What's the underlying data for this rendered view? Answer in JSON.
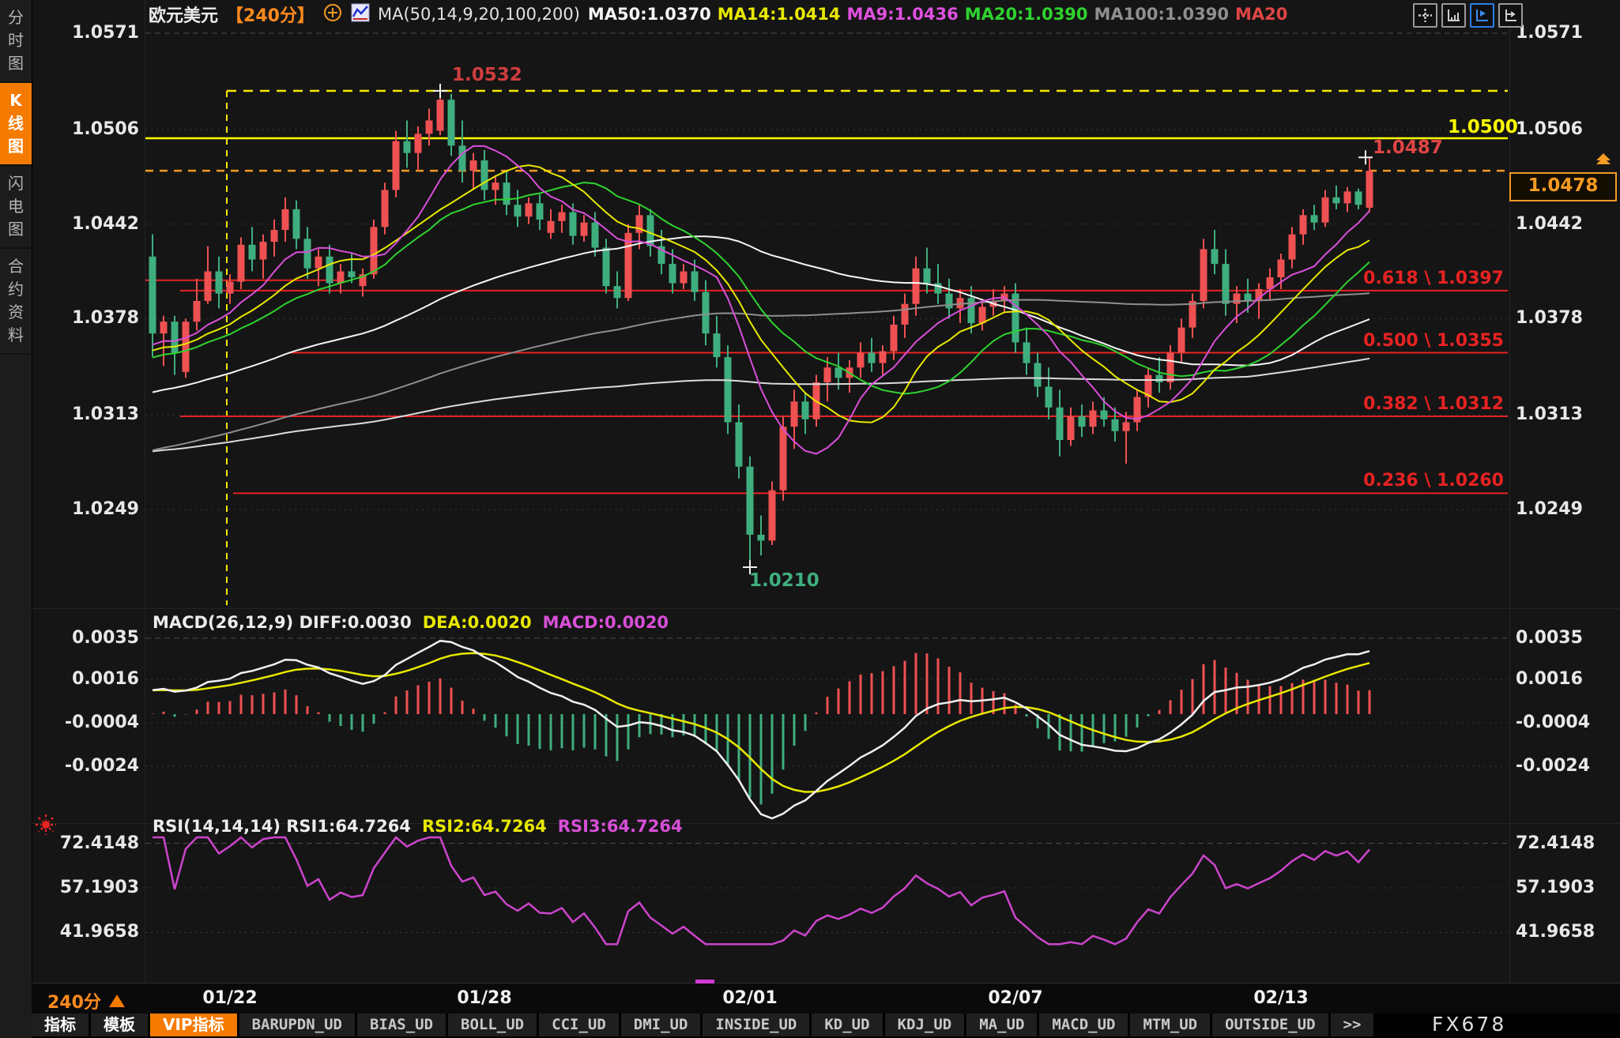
{
  "window": {
    "watermark": "FX678"
  },
  "sidebar": {
    "items": [
      {
        "label": "分时图",
        "active": false
      },
      {
        "label": "K线图",
        "active": true
      },
      {
        "label": "闪电图",
        "active": false
      },
      {
        "label": "合约资料",
        "active": false
      }
    ]
  },
  "header": {
    "symbol": "欧元美元",
    "interval": "【240分】",
    "ma_settings": "MA(50,14,9,20,100,200)",
    "ma_values": [
      {
        "label": "MA50:1.0370",
        "color": "#f5f5f5"
      },
      {
        "label": "MA14:1.0414",
        "color": "#e8e800"
      },
      {
        "label": "MA9:1.0436",
        "color": "#e050e0"
      },
      {
        "label": "MA20:1.0390",
        "color": "#2fd32f"
      },
      {
        "label": "MA100:1.0390",
        "color": "#8f8f8f"
      },
      {
        "label": "MA20",
        "color": "#e04545"
      }
    ],
    "toolbar_icons": [
      "pan-crosshair-icon",
      "axis-scale-icon",
      "axis-scale-active-icon",
      "axis-shift-icon"
    ]
  },
  "price_box": {
    "value": "1.0478"
  },
  "annotations": {
    "peak": "1.0532",
    "recent_high": "1.0487",
    "resistance_label": "1.0500",
    "low": "1.0210",
    "fib_labels": [
      "0.618 \\ 1.0397",
      "0.500 \\ 1.0355",
      "0.382 \\ 1.0312",
      "0.236 \\ 1.0260"
    ]
  },
  "macd_header": {
    "segments": [
      {
        "text": "MACD(26,12,9) DIFF:0.0030",
        "color": "#ececec"
      },
      {
        "text": "DEA:0.0020",
        "color": "#e8e800"
      },
      {
        "text": "MACD:0.0020",
        "color": "#d94fd9"
      }
    ]
  },
  "rsi_header": {
    "segments": [
      {
        "text": "RSI(14,14,14) RSI1:64.7264",
        "color": "#ececec"
      },
      {
        "text": "RSI2:64.7264",
        "color": "#e8e800"
      },
      {
        "text": "RSI3:64.7264",
        "color": "#d94fd9"
      }
    ]
  },
  "footer": {
    "interval_label": "240分",
    "dates": [
      "01/22",
      "01/28",
      "02/01",
      "02/07",
      "02/13"
    ],
    "tabs": [
      {
        "label": "指标",
        "style": "cjk",
        "active": false
      },
      {
        "label": "模板",
        "style": "cjk",
        "active": false
      },
      {
        "label": "VIP指标",
        "style": "cjk",
        "active": true
      },
      {
        "label": "BARUPDN_UD"
      },
      {
        "label": "BIAS_UD"
      },
      {
        "label": "BOLL_UD"
      },
      {
        "label": "CCI_UD"
      },
      {
        "label": "DMI_UD"
      },
      {
        "label": "INSIDE_UD"
      },
      {
        "label": "KD_UD"
      },
      {
        "label": "KDJ_UD"
      },
      {
        "label": "MA_UD"
      },
      {
        "label": "MACD_UD"
      },
      {
        "label": "MTM_UD"
      },
      {
        "label": "OUTSIDE_UD"
      },
      {
        "label": ">>"
      }
    ]
  },
  "chart_data": {
    "type": "candlestick",
    "title": "欧元美元 240分 K线图",
    "symbol": "EURUSD",
    "interval_minutes": 240,
    "price_ticks": [
      1.0571,
      1.0506,
      1.0442,
      1.0378,
      1.0313,
      1.0249
    ],
    "x_labels": [
      "01/22",
      "01/28",
      "02/01",
      "02/07",
      "02/13"
    ],
    "x_label_candle_index": [
      7,
      30,
      54,
      78,
      102
    ],
    "up_color": "#ef5152",
    "down_color": "#3fae7f",
    "candles": [
      [
        1.042,
        1.0435,
        1.0352,
        1.0368
      ],
      [
        1.0368,
        1.038,
        1.0346,
        1.0376
      ],
      [
        1.0376,
        1.038,
        1.034,
        1.0355
      ],
      [
        1.0342,
        1.0378,
        1.0338,
        1.0376
      ],
      [
        1.0376,
        1.0405,
        1.037,
        1.039
      ],
      [
        1.039,
        1.0427,
        1.0388,
        1.041
      ],
      [
        1.041,
        1.042,
        1.0385,
        1.0395
      ],
      [
        1.0395,
        1.0408,
        1.0388,
        1.0403
      ],
      [
        1.0403,
        1.0433,
        1.0398,
        1.0428
      ],
      [
        1.0428,
        1.044,
        1.041,
        1.0418
      ],
      [
        1.0418,
        1.0435,
        1.0405,
        1.043
      ],
      [
        1.043,
        1.0445,
        1.042,
        1.0438
      ],
      [
        1.0438,
        1.046,
        1.043,
        1.0452
      ],
      [
        1.0452,
        1.0458,
        1.0425,
        1.0432
      ],
      [
        1.0432,
        1.044,
        1.0405,
        1.0412
      ],
      [
        1.0412,
        1.0425,
        1.04,
        1.042
      ],
      [
        1.042,
        1.0428,
        1.0395,
        1.0402
      ],
      [
        1.0402,
        1.0415,
        1.0395,
        1.041
      ],
      [
        1.041,
        1.0422,
        1.0402,
        1.0406
      ],
      [
        1.04,
        1.0412,
        1.0393,
        1.0408
      ],
      [
        1.0408,
        1.0445,
        1.0405,
        1.044
      ],
      [
        1.044,
        1.047,
        1.0435,
        1.0465
      ],
      [
        1.0465,
        1.0505,
        1.046,
        1.0498
      ],
      [
        1.0498,
        1.0512,
        1.048,
        1.049
      ],
      [
        1.049,
        1.0508,
        1.0478,
        1.0503
      ],
      [
        1.0503,
        1.052,
        1.0495,
        1.0512
      ],
      [
        1.0505,
        1.0532,
        1.0502,
        1.0526
      ],
      [
        1.0526,
        1.053,
        1.0488,
        1.0495
      ],
      [
        1.0495,
        1.0512,
        1.047,
        1.0478
      ],
      [
        1.0478,
        1.049,
        1.0465,
        1.0485
      ],
      [
        1.0485,
        1.0492,
        1.0458,
        1.0465
      ],
      [
        1.0465,
        1.0475,
        1.0455,
        1.047
      ],
      [
        1.047,
        1.0478,
        1.0448,
        1.0455
      ],
      [
        1.0455,
        1.0465,
        1.044,
        1.0447
      ],
      [
        1.0447,
        1.046,
        1.0442,
        1.0456
      ],
      [
        1.0456,
        1.0462,
        1.0438,
        1.0445
      ],
      [
        1.0436,
        1.0452,
        1.0432,
        1.0444
      ],
      [
        1.0444,
        1.0455,
        1.0436,
        1.045
      ],
      [
        1.045,
        1.0456,
        1.0428,
        1.0434
      ],
      [
        1.0434,
        1.0448,
        1.043,
        1.0443
      ],
      [
        1.0443,
        1.045,
        1.042,
        1.0426
      ],
      [
        1.0426,
        1.0432,
        1.0395,
        1.04
      ],
      [
        1.04,
        1.041,
        1.0385,
        1.0392
      ],
      [
        1.0392,
        1.0442,
        1.039,
        1.0436
      ],
      [
        1.0436,
        1.0455,
        1.0425,
        1.0448
      ],
      [
        1.0448,
        1.0452,
        1.042,
        1.0427
      ],
      [
        1.0427,
        1.0438,
        1.0408,
        1.0415
      ],
      [
        1.0415,
        1.0425,
        1.0395,
        1.0402
      ],
      [
        1.0402,
        1.0415,
        1.0398,
        1.041
      ],
      [
        1.041,
        1.0418,
        1.039,
        1.0396
      ],
      [
        1.0396,
        1.0404,
        1.036,
        1.0368
      ],
      [
        1.0368,
        1.038,
        1.0345,
        1.0352
      ],
      [
        1.0352,
        1.036,
        1.03,
        1.0308
      ],
      [
        1.0308,
        1.032,
        1.027,
        1.0278
      ],
      [
        1.0278,
        1.0285,
        1.021,
        1.0232
      ],
      [
        1.0232,
        1.0245,
        1.0218,
        1.0228
      ],
      [
        1.0228,
        1.0268,
        1.0225,
        1.0262
      ],
      [
        1.0262,
        1.0312,
        1.0255,
        1.0305
      ],
      [
        1.0305,
        1.033,
        1.029,
        1.0322
      ],
      [
        1.0322,
        1.0328,
        1.03,
        1.031
      ],
      [
        1.031,
        1.034,
        1.0305,
        1.0335
      ],
      [
        1.0335,
        1.0352,
        1.0322,
        1.0345
      ],
      [
        1.0345,
        1.0355,
        1.033,
        1.0338
      ],
      [
        1.0338,
        1.035,
        1.0328,
        1.0345
      ],
      [
        1.0345,
        1.0362,
        1.0338,
        1.0355
      ],
      [
        1.0355,
        1.0365,
        1.0342,
        1.0348
      ],
      [
        1.0348,
        1.036,
        1.034,
        1.0356
      ],
      [
        1.0356,
        1.038,
        1.035,
        1.0374
      ],
      [
        1.0374,
        1.0395,
        1.0365,
        1.0388
      ],
      [
        1.0388,
        1.042,
        1.038,
        1.0412
      ],
      [
        1.0412,
        1.0426,
        1.0395,
        1.0402
      ],
      [
        1.0402,
        1.0415,
        1.0388,
        1.0395
      ],
      [
        1.0395,
        1.0405,
        1.0378,
        1.0385
      ],
      [
        1.0385,
        1.0398,
        1.0375,
        1.0392
      ],
      [
        1.0392,
        1.04,
        1.0368,
        1.0375
      ],
      [
        1.0375,
        1.039,
        1.037,
        1.0386
      ],
      [
        1.0386,
        1.0398,
        1.038,
        1.039
      ],
      [
        1.039,
        1.04,
        1.0382,
        1.0395
      ],
      [
        1.0395,
        1.0402,
        1.0355,
        1.0362
      ],
      [
        1.0362,
        1.0372,
        1.034,
        1.0348
      ],
      [
        1.0348,
        1.0355,
        1.0325,
        1.0332
      ],
      [
        1.0332,
        1.0345,
        1.031,
        1.0318
      ],
      [
        1.0318,
        1.033,
        1.0285,
        1.0296
      ],
      [
        1.0296,
        1.0318,
        1.0292,
        1.0312
      ],
      [
        1.0312,
        1.032,
        1.0298,
        1.0305
      ],
      [
        1.0305,
        1.0322,
        1.03,
        1.0316
      ],
      [
        1.0316,
        1.0325,
        1.0305,
        1.031
      ],
      [
        1.031,
        1.0318,
        1.0295,
        1.0302
      ],
      [
        1.0302,
        1.0315,
        1.028,
        1.0308
      ],
      [
        1.0308,
        1.033,
        1.0302,
        1.0325
      ],
      [
        1.0325,
        1.0345,
        1.0318,
        1.034
      ],
      [
        1.034,
        1.0352,
        1.0328,
        1.0335
      ],
      [
        1.0335,
        1.036,
        1.033,
        1.0355
      ],
      [
        1.0355,
        1.0378,
        1.0348,
        1.0372
      ],
      [
        1.0372,
        1.0395,
        1.0365,
        1.039
      ],
      [
        1.039,
        1.0432,
        1.0385,
        1.0425
      ],
      [
        1.0425,
        1.0438,
        1.0408,
        1.0415
      ],
      [
        1.0415,
        1.0425,
        1.038,
        1.0388
      ],
      [
        1.0388,
        1.04,
        1.0375,
        1.0395
      ],
      [
        1.0395,
        1.0405,
        1.0382,
        1.039
      ],
      [
        1.039,
        1.0402,
        1.0378,
        1.0398
      ],
      [
        1.0398,
        1.0412,
        1.039,
        1.0406
      ],
      [
        1.0406,
        1.0422,
        1.0398,
        1.0418
      ],
      [
        1.0418,
        1.044,
        1.0412,
        1.0435
      ],
      [
        1.0435,
        1.0452,
        1.0428,
        1.0448
      ],
      [
        1.0448,
        1.0455,
        1.0438,
        1.0443
      ],
      [
        1.0443,
        1.0465,
        1.044,
        1.046
      ],
      [
        1.046,
        1.0468,
        1.0452,
        1.0456
      ],
      [
        1.0456,
        1.0467,
        1.045,
        1.0464
      ],
      [
        1.0464,
        1.0466,
        1.0452,
        1.0455
      ],
      [
        1.0453,
        1.0487,
        1.045,
        1.0478
      ]
    ],
    "levels": {
      "resistance": 1.05,
      "peak_dashed": 1.0532,
      "current_price_dashed": 1.0478,
      "fib": [
        {
          "ratio": 0.618,
          "price": 1.0397
        },
        {
          "ratio": 0.5,
          "price": 1.0355
        },
        {
          "ratio": 0.382,
          "price": 1.0312
        },
        {
          "ratio": 0.236,
          "price": 1.026
        }
      ],
      "trend_segment_price": 1.0404
    },
    "key_points": {
      "peak_price": 1.0532,
      "low_price": 1.021,
      "last_high": 1.0487,
      "last_price": 1.0478
    },
    "ma": {
      "periods": [
        200,
        100,
        50,
        20,
        14,
        9
      ],
      "colors": {
        "9": "#d94fd9",
        "14": "#e8e800",
        "20": "#2fd32f",
        "50": "#f5f5f5",
        "100": "#8f8f8f",
        "200": "#dcdcdc"
      },
      "warmup": {
        "bars": 100,
        "start_price": 1.021,
        "end_price": 1.0365
      }
    },
    "macd": {
      "fast": 12,
      "slow": 26,
      "signal": 9,
      "last_diff": 0.003,
      "last_dea": 0.002,
      "last_macd": 0.002,
      "ticks": [
        0.0035,
        0.0016,
        -0.0004,
        -0.0024
      ],
      "diff_color": "#f0f0f0",
      "dea_color": "#e8e800",
      "hist_up_color": "#ef5152",
      "hist_down_color": "#3fae7f"
    },
    "rsi": {
      "periods": [
        14,
        14,
        14
      ],
      "values": [
        64.7264,
        64.7264,
        64.7264
      ],
      "ticks": [
        72.4148,
        57.1903,
        41.9658
      ],
      "color": "#cc44cc",
      "draw_clamp": [
        38,
        78
      ]
    }
  }
}
